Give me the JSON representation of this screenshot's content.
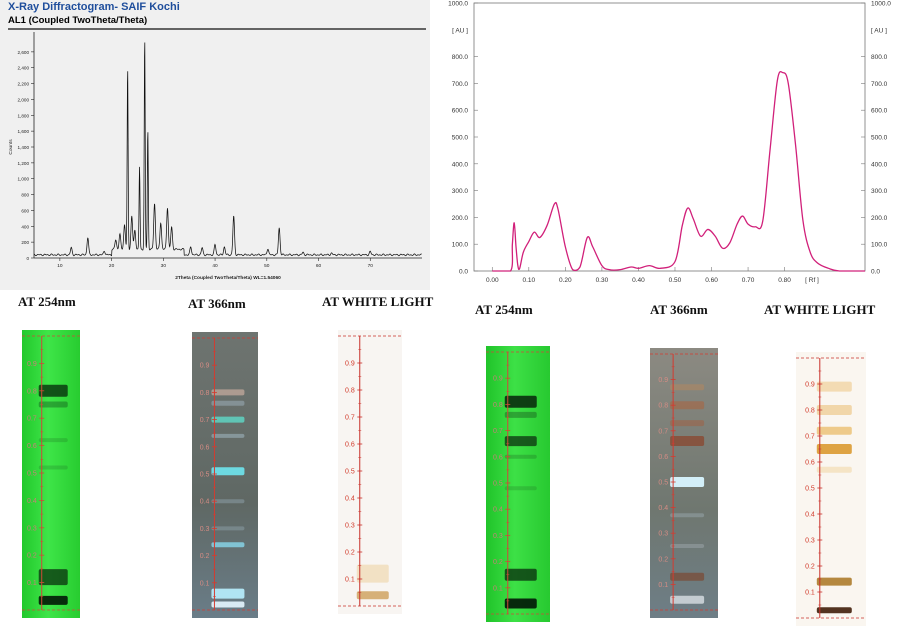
{
  "xrd": {
    "title": "X-Ray Diffractogram- SAIF Kochi",
    "subtitle": "AL1 (Coupled TwoTheta/Theta)",
    "chart_data": {
      "type": "line",
      "xlabel": "2Theta (Coupled TwoTheta/Theta) WL=1.54060",
      "ylabel": "Counts",
      "xlim": [
        5,
        80
      ],
      "ylim": [
        0,
        2800
      ],
      "x_ticks": [
        "10",
        "20",
        "30",
        "40",
        "50",
        "60",
        "70"
      ],
      "y_ticks": [
        "0",
        "200",
        "400",
        "600",
        "800",
        "1,000",
        "1,200",
        "1,400",
        "1,600",
        "1,800",
        "2,000",
        "2,200",
        "2,400",
        "2,600"
      ],
      "baseline": 40,
      "peaks": [
        {
          "x": 12.2,
          "y": 130
        },
        {
          "x": 15.4,
          "y": 260
        },
        {
          "x": 18.6,
          "y": 90
        },
        {
          "x": 20.8,
          "y": 160
        },
        {
          "x": 21.6,
          "y": 230
        },
        {
          "x": 22.5,
          "y": 350
        },
        {
          "x": 23.1,
          "y": 2330
        },
        {
          "x": 23.9,
          "y": 460
        },
        {
          "x": 24.5,
          "y": 280
        },
        {
          "x": 25.4,
          "y": 1080
        },
        {
          "x": 26.4,
          "y": 2700
        },
        {
          "x": 27.0,
          "y": 1550
        },
        {
          "x": 28.3,
          "y": 620
        },
        {
          "x": 29.5,
          "y": 380
        },
        {
          "x": 30.8,
          "y": 570
        },
        {
          "x": 31.6,
          "y": 320
        },
        {
          "x": 35.3,
          "y": 140
        },
        {
          "x": 37.5,
          "y": 130
        },
        {
          "x": 40.0,
          "y": 170
        },
        {
          "x": 41.8,
          "y": 140
        },
        {
          "x": 43.6,
          "y": 530
        },
        {
          "x": 50.2,
          "y": 120
        },
        {
          "x": 52.4,
          "y": 380
        },
        {
          "x": 57.0,
          "y": 70
        },
        {
          "x": 62.5,
          "y": 60
        },
        {
          "x": 70.0,
          "y": 80
        }
      ]
    }
  },
  "densitogram": {
    "chart_data": {
      "type": "line",
      "xlim": [
        -0.05,
        1.02
      ],
      "ylim": [
        0,
        1000
      ],
      "x_ticks": [
        "0.00",
        "0.10",
        "0.20",
        "0.30",
        "0.40",
        "0.50",
        "0.60",
        "0.70",
        "0.80"
      ],
      "x_unit_label": "[ Rf ]",
      "y_ticks": [
        "0.0",
        "100.0",
        "200.0",
        "300.0",
        "400.0",
        "500.0",
        "600.0",
        "700.0",
        "800.0",
        "1000.0"
      ],
      "y_unit_label": "[ AU ]",
      "line_color": "#d1207a",
      "points": [
        [
          0.0,
          0
        ],
        [
          0.05,
          0
        ],
        [
          0.055,
          100
        ],
        [
          0.06,
          180
        ],
        [
          0.065,
          90
        ],
        [
          0.07,
          20
        ],
        [
          0.075,
          10
        ],
        [
          0.085,
          70
        ],
        [
          0.1,
          110
        ],
        [
          0.115,
          145
        ],
        [
          0.13,
          125
        ],
        [
          0.15,
          170
        ],
        [
          0.17,
          250
        ],
        [
          0.18,
          230
        ],
        [
          0.2,
          90
        ],
        [
          0.22,
          5
        ],
        [
          0.24,
          15
        ],
        [
          0.26,
          125
        ],
        [
          0.275,
          90
        ],
        [
          0.3,
          20
        ],
        [
          0.32,
          5
        ],
        [
          0.35,
          5
        ],
        [
          0.38,
          15
        ],
        [
          0.4,
          10
        ],
        [
          0.43,
          20
        ],
        [
          0.46,
          10
        ],
        [
          0.5,
          35
        ],
        [
          0.52,
          170
        ],
        [
          0.535,
          235
        ],
        [
          0.55,
          195
        ],
        [
          0.57,
          130
        ],
        [
          0.59,
          155
        ],
        [
          0.61,
          130
        ],
        [
          0.63,
          85
        ],
        [
          0.65,
          105
        ],
        [
          0.67,
          175
        ],
        [
          0.685,
          205
        ],
        [
          0.7,
          175
        ],
        [
          0.72,
          165
        ],
        [
          0.74,
          185
        ],
        [
          0.76,
          450
        ],
        [
          0.78,
          710
        ],
        [
          0.795,
          740
        ],
        [
          0.81,
          700
        ],
        [
          0.83,
          470
        ],
        [
          0.85,
          190
        ],
        [
          0.87,
          70
        ],
        [
          0.89,
          30
        ],
        [
          0.92,
          10
        ],
        [
          0.95,
          0
        ],
        [
          1.02,
          0
        ]
      ]
    }
  },
  "plates": {
    "group1": [
      {
        "caption": "AT 254nm",
        "labels": [
          "0.9",
          "0.8",
          "0.7",
          "0.6",
          "0.5",
          "0.4",
          "0.3",
          "0.2",
          "0.1"
        ]
      },
      {
        "caption": "AT 366nm",
        "labels": [
          "0.9",
          "0.8",
          "0.7",
          "0.6",
          "0.5",
          "0.4",
          "0.3",
          "0.2",
          "0.1"
        ]
      },
      {
        "caption": "AT WHITE LIGHT",
        "labels": [
          "0.9",
          "0.8",
          "0.7",
          "0.6",
          "0.5",
          "0.4",
          "0.3",
          "0.2",
          "0.1"
        ]
      }
    ],
    "group2": [
      {
        "caption": "AT 254nm",
        "labels": [
          "0.9",
          "0.8",
          "0.7",
          "0.6",
          "0.5",
          "0.4",
          "0.3",
          "0.2",
          "0.1"
        ]
      },
      {
        "caption": "AT 366nm",
        "labels": [
          "0.9",
          "0.8",
          "0.7",
          "0.6",
          "0.5",
          "0.4",
          "0.3",
          "0.2",
          "0.1"
        ]
      },
      {
        "caption": "AT WHITE LIGHT",
        "labels": [
          "0.9",
          "0.8",
          "0.7",
          "0.6",
          "0.5",
          "0.4",
          "0.3",
          "0.2",
          "0.1"
        ]
      }
    ]
  }
}
